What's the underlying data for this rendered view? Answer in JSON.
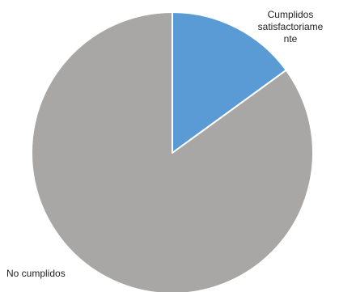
{
  "chart_data": {
    "type": "pie",
    "title": "",
    "start_angle_deg": 0,
    "direction": "clockwise",
    "slices": [
      {
        "label": "Cumplidos satisfactoriamente",
        "label_lines": [
          "Cumplidos",
          "satisfactoriame",
          "nte"
        ],
        "value": 15,
        "color": "#5b9bd5"
      },
      {
        "label": "No cumplidos",
        "value": 85,
        "color": "#a9a6a6"
      }
    ]
  }
}
